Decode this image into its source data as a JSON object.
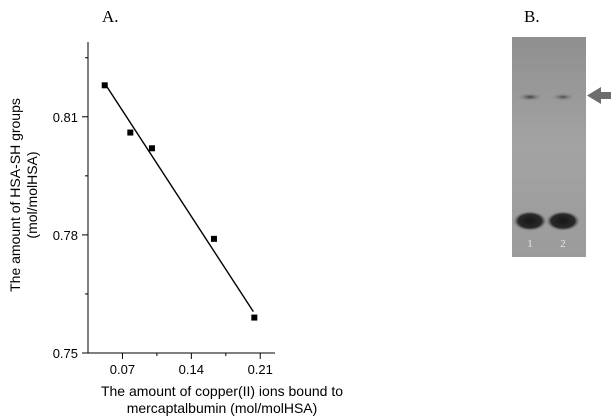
{
  "panel_a_label": "A.",
  "panel_b_label": "B.",
  "chart_data": {
    "type": "scatter",
    "xlabel_line1": "The amount of copper(II) ions bound to",
    "xlabel_line2": "mercaptalbumin (mol/molHSA)",
    "ylabel_line1": "The amount of HSA-SH groups",
    "ylabel_line2": "(mol/molHSA)",
    "xlim": [
      0.035,
      0.225
    ],
    "ylim": [
      0.75,
      0.829
    ],
    "x_ticks": [
      0.07,
      0.14,
      0.21
    ],
    "x_tick_labels": [
      "0.07",
      "0.14",
      "0.21"
    ],
    "y_ticks": [
      0.75,
      0.78,
      0.81
    ],
    "y_tick_labels": [
      "0.75",
      "0.78",
      "0.81"
    ],
    "series": [
      {
        "points": [
          {
            "x": 0.052,
            "y": 0.818
          },
          {
            "x": 0.078,
            "y": 0.806
          },
          {
            "x": 0.1,
            "y": 0.802
          },
          {
            "x": 0.163,
            "y": 0.779
          },
          {
            "x": 0.204,
            "y": 0.759
          }
        ]
      }
    ],
    "fit_line": {
      "x": [
        0.052,
        0.203
      ],
      "y": [
        0.8185,
        0.7605
      ]
    },
    "grid": false,
    "marker_color": "#000000"
  },
  "gel": {
    "lane_labels": [
      "1",
      "2"
    ],
    "arrow_direction": "left",
    "background_color": "#9a9a9a",
    "band_color": "#2a2a2a"
  }
}
